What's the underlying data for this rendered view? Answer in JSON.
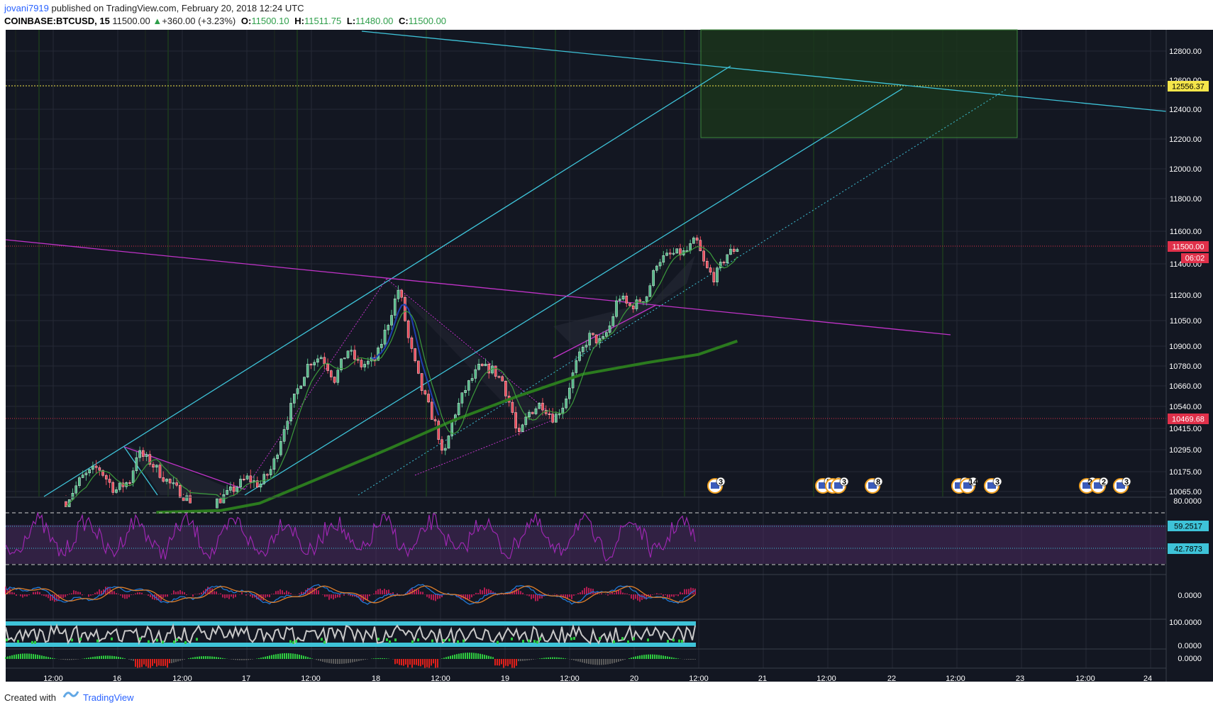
{
  "header": {
    "user": "jovani7919",
    "published": "published on TradingView.com, February 20, 2018 12:24 UTC",
    "symbol": "COINBASE:BTCUSD, 15",
    "last": "11500.00",
    "change": "+360.00 (+3.23%)",
    "o_label": "O:",
    "o_value": "11500.10",
    "h_label": "H:",
    "h_value": "11511.75",
    "l_label": "L:",
    "l_value": "11480.00",
    "c_label": "C:",
    "c_value": "11500.00"
  },
  "footer": {
    "created": "Created with",
    "brand": "TradingView"
  },
  "colors": {
    "background": "#131722",
    "grid": "#2a2e39",
    "up": "#53b987",
    "down": "#eb4d5c",
    "cyan": "#3ec3d8",
    "magenta": "#c033c8",
    "green_ma": "#2b7a1e",
    "target_zone": "#1e3a1e",
    "rsi": "#9c27b0",
    "price_tag": "#e0304a",
    "yellow_tag": "#f5e64a"
  },
  "chart_data": [
    {
      "type": "candlestick",
      "title": "COINBASE:BTCUSD, 15",
      "y_ticks": [
        "12800.00",
        "12600.00",
        "12400.00",
        "12200.00",
        "12000.00",
        "11800.00",
        "11600.00",
        "11400.00",
        "11200.00",
        "11050.00",
        "10900.00",
        "10780.00",
        "10660.00",
        "10540.00",
        "10415.00",
        "10295.00",
        "10175.00",
        "10065.00"
      ],
      "ylim": [
        10020,
        12920
      ],
      "x_ticks": [
        "12:00",
        "16",
        "12:00",
        "17",
        "12:00",
        "18",
        "12:00",
        "19",
        "12:00",
        "20",
        "12:00",
        "21",
        "12:00",
        "22",
        "12:00",
        "23",
        "12:00",
        "24"
      ],
      "last_price": "11500.00",
      "countdown": "06:02",
      "levels": [
        {
          "label": "12556.37",
          "value": 12556.37,
          "color": "#f5e64a"
        },
        {
          "label": "11500.00",
          "value": 11500.0,
          "color": "#e0304a"
        },
        {
          "label": "10469.68",
          "value": 10469.68,
          "color": "#e0304a"
        }
      ],
      "close_path": [
        [
          15.5,
          10010
        ],
        [
          15.62,
          10140
        ],
        [
          15.75,
          10200
        ],
        [
          15.88,
          10070
        ],
        [
          16.0,
          10130
        ],
        [
          16.05,
          10280
        ],
        [
          16.15,
          10230
        ],
        [
          16.3,
          10110
        ],
        [
          16.45,
          10020
        ],
        [
          16.6,
          9980
        ],
        [
          16.75,
          10050
        ],
        [
          16.9,
          10140
        ],
        [
          17.0,
          10100
        ],
        [
          17.1,
          10200
        ],
        [
          17.2,
          10450
        ],
        [
          17.3,
          10650
        ],
        [
          17.38,
          10800
        ],
        [
          17.48,
          10840
        ],
        [
          17.58,
          10700
        ],
        [
          17.68,
          10880
        ],
        [
          17.78,
          10780
        ],
        [
          17.9,
          10820
        ],
        [
          18.0,
          11050
        ],
        [
          18.08,
          11250
        ],
        [
          18.15,
          10950
        ],
        [
          18.25,
          10650
        ],
        [
          18.38,
          10400
        ],
        [
          18.42,
          10230
        ],
        [
          18.5,
          10480
        ],
        [
          18.6,
          10650
        ],
        [
          18.7,
          10770
        ],
        [
          18.8,
          10760
        ],
        [
          18.88,
          10690
        ],
        [
          18.96,
          10500
        ],
        [
          19.0,
          10350
        ],
        [
          19.08,
          10500
        ],
        [
          19.18,
          10560
        ],
        [
          19.28,
          10470
        ],
        [
          19.36,
          10560
        ],
        [
          19.45,
          10790
        ],
        [
          19.55,
          10960
        ],
        [
          19.65,
          10920
        ],
        [
          19.72,
          11030
        ],
        [
          19.78,
          11200
        ],
        [
          19.86,
          11130
        ],
        [
          19.92,
          11150
        ],
        [
          20.0,
          11200
        ],
        [
          20.08,
          11420
        ],
        [
          20.2,
          11460
        ],
        [
          20.3,
          11470
        ],
        [
          20.38,
          11550
        ],
        [
          20.45,
          11380
        ],
        [
          20.52,
          11310
        ],
        [
          20.62,
          11460
        ],
        [
          20.7,
          11500
        ]
      ],
      "ma200_path": [
        [
          16.2,
          9950
        ],
        [
          16.7,
          9960
        ],
        [
          17.0,
          10000
        ],
        [
          17.5,
          10150
        ],
        [
          18.0,
          10300
        ],
        [
          18.5,
          10460
        ],
        [
          19.0,
          10600
        ],
        [
          19.5,
          10730
        ],
        [
          20.0,
          10800
        ],
        [
          20.4,
          10850
        ],
        [
          20.7,
          10930
        ]
      ],
      "annotations": {
        "event_badges": [
          "3",
          "5",
          "2",
          "3",
          "8",
          "3",
          "14",
          "3",
          "24",
          "2",
          "3"
        ]
      }
    },
    {
      "type": "line",
      "title": "",
      "y_ticks": [
        "80.0000",
        "59.2517",
        "42.7873"
      ],
      "ylim": [
        20,
        85
      ],
      "levels": [
        70,
        30
      ],
      "values_shown": [
        59.2517,
        42.7873
      ]
    },
    {
      "type": "line",
      "title": "",
      "y_ticks": [
        "0.0000"
      ]
    },
    {
      "type": "line",
      "title": "",
      "y_ticks": [
        "100.0000",
        "0.0000"
      ]
    },
    {
      "type": "bar",
      "title": "",
      "y_ticks": [
        "0.0000"
      ]
    }
  ]
}
